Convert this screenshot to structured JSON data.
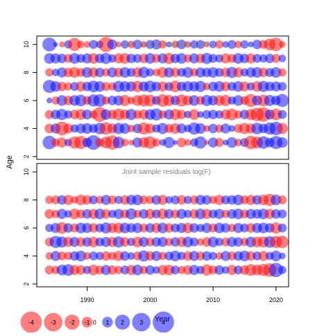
{
  "chart_data": {
    "type": "scatter",
    "subtype": "bubble-residuals",
    "colors": {
      "positive": "#0000FF",
      "negative": "#FF0000",
      "frame": "#000000",
      "panel_title": "#808080"
    },
    "shared_x": {
      "label": "Year",
      "range": [
        1982,
        2022
      ],
      "ticks": [
        1990,
        2000,
        2010,
        2020
      ],
      "years_shown": [
        1984,
        2021
      ]
    },
    "shared_y_label": "Age",
    "panels": [
      {
        "title": "Joint sample residuals log(N)",
        "ylim": [
          1.8,
          10.6
        ],
        "yticks": [
          2,
          4,
          6,
          8,
          10
        ],
        "ages": [
          3,
          4,
          5,
          6,
          7,
          8,
          9,
          10
        ],
        "first_year": 1984,
        "residuals": [
          [
            1.6,
            -0.6,
            -0.9,
            0.5,
            -1.3,
            -1.5,
            0.8,
            1.9,
            -0.7,
            -1.2,
            -1.8,
            1.2,
            -0.5,
            -0.3,
            0.9,
            -1.0,
            -1.4,
            -0.6,
            0.4,
            1.1,
            0.2,
            -0.8,
            -0.4,
            0.6,
            1.3,
            -0.2,
            0.9,
            -0.7,
            0.3,
            1.0,
            -0.5,
            0.7,
            -1.6,
            -1.2,
            1.4,
            0.8,
            1.5,
            1.0
          ],
          [
            -0.8,
            0.9,
            -1.7,
            -0.9,
            0.6,
            0.9,
            1.0,
            0.7,
            1.2,
            -1.4,
            -0.9,
            1.1,
            1.0,
            -0.5,
            0.8,
            -1.3,
            -0.9,
            0.6,
            1.1,
            -0.7,
            -1.0,
            0.9,
            0.5,
            1.3,
            1.0,
            -0.4,
            0.8,
            -0.6,
            0.9,
            0.4,
            -0.7,
            -1.1,
            -0.9,
            1.2,
            0.8,
            1.3,
            1.6,
            -1.1
          ],
          [
            -0.7,
            0.8,
            1.1,
            0.6,
            -0.8,
            -1.0,
            0.9,
            -0.6,
            -1.9,
            1.0,
            -0.8,
            -1.2,
            -0.9,
            1.1,
            -0.7,
            -0.9,
            1.0,
            1.3,
            -0.6,
            0.9,
            -1.1,
            -0.8,
            0.5,
            -1.0,
            0.4,
            0.7,
            0.8,
            0.6,
            -0.9,
            -1.2,
            -0.6,
            0.8,
            -1.1,
            -1.6,
            -1.8,
            0.9,
            -1.2,
            0.7
          ],
          [
            0.3,
            -0.6,
            1.0,
            -0.8,
            1.0,
            1.2,
            -0.7,
            1.3,
            1.4,
            -0.6,
            0.8,
            0.9,
            -1.1,
            -0.5,
            -1.0,
            -1.3,
            -1.2,
            0.7,
            -1.4,
            -1.1,
            0.8,
            -1.3,
            -0.9,
            1.0,
            -0.7,
            1.1,
            0.9,
            -1.0,
            -1.1,
            0.6,
            1.0,
            -0.7,
            -1.5,
            0.9,
            -1.2,
            1.1,
            0.8,
            1.5
          ],
          [
            1.5,
            1.0,
            -0.8,
            -0.6,
            0.7,
            -0.9,
            0.8,
            1.2,
            1.0,
            -0.7,
            -0.6,
            1.1,
            1.0,
            0.9,
            -1.1,
            0.9,
            1.2,
            0.8,
            -0.9,
            0.7,
            -1.2,
            0.8,
            1.0,
            0.9,
            1.1,
            -0.5,
            0.8,
            1.0,
            -0.8,
            0.7,
            1.0,
            -0.9,
            0.6,
            -1.0,
            1.1,
            0.8,
            0.9,
            0.7
          ],
          [
            -0.6,
            0.5,
            0.9,
            -0.8,
            -1.0,
            -0.7,
            1.0,
            -0.9,
            0.8,
            -0.6,
            0.9,
            -0.8,
            1.0,
            0.7,
            -0.9,
            1.1,
            0.6,
            -0.5,
            -1.0,
            0.9,
            -0.8,
            0.7,
            1.0,
            -0.6,
            0.9,
            0.8,
            1.0,
            0.7,
            -0.8,
            1.1,
            -0.9,
            0.6,
            0.9,
            1.0,
            -0.8,
            0.7,
            1.0,
            -0.6
          ],
          [
            1.0,
            0.9,
            0.8,
            -0.7,
            1.0,
            0.7,
            0.9,
            -1.0,
            0.8,
            1.1,
            0.6,
            -0.9,
            -1.0,
            0.8,
            0.7,
            -0.8,
            1.0,
            -0.7,
            0.9,
            -1.1,
            0.8,
            1.0,
            -0.6,
            0.9,
            -0.8,
            1.1,
            0.7,
            0.6,
            -0.9,
            -0.7,
            1.0,
            0.8,
            -0.9,
            0.7,
            0.6,
            0.8,
            -0.7,
            0.5
          ],
          [
            1.7,
            0.2,
            -0.3,
            0.6,
            -1.5,
            -0.5,
            -0.4,
            0.7,
            0.5,
            -2.0,
            0.9,
            -0.3,
            0.6,
            -0.5,
            0.8,
            -0.4,
            0.7,
            0.9,
            -0.6,
            0.3,
            -0.5,
            0.8,
            -0.4,
            0.6,
            0.7,
            -0.3,
            0.5,
            -0.6,
            0.4,
            0.7,
            -0.5,
            0.6,
            0.3,
            0.8,
            -0.7,
            -1.2,
            -1.6,
            -0.4
          ]
        ]
      },
      {
        "title": "Joint sample residuals log(F)",
        "ylim": [
          1.8,
          10.6
        ],
        "yticks": [
          2,
          4,
          6,
          8,
          10
        ],
        "ages": [
          3,
          4,
          5,
          6,
          7,
          8
        ],
        "first_year": 1984,
        "residuals": [
          [
            -0.7,
            -0.6,
            1.0,
            1.2,
            -0.9,
            -0.8,
            0.6,
            -1.0,
            -0.7,
            0.9,
            -0.8,
            -0.6,
            0.7,
            -0.9,
            1.0,
            -0.6,
            0.8,
            0.5,
            -0.9,
            -1.0,
            0.7,
            -0.6,
            -0.8,
            0.9,
            0.6,
            -1.1,
            -0.7,
            0.8,
            0.5,
            -0.9,
            0.7,
            -0.8,
            -1.2,
            -1.0,
            -1.3,
            -1.6,
            1.8,
            0.6
          ],
          [
            -0.5,
            0.9,
            -0.7,
            -0.6,
            0.8,
            1.0,
            -0.5,
            0.7,
            0.6,
            -0.8,
            -0.6,
            -0.9,
            0.8,
            0.5,
            -0.7,
            1.1,
            -0.8,
            0.9,
            -0.6,
            0.7,
            1.0,
            0.6,
            -0.8,
            0.9,
            -0.7,
            0.8,
            0.6,
            -0.5,
            0.9,
            -0.7,
            0.8,
            1.0,
            -0.8,
            0.7,
            -0.9,
            0.6,
            1.0,
            0.4
          ],
          [
            -0.7,
            1.3,
            1.1,
            -0.9,
            0.9,
            -0.8,
            0.8,
            -1.0,
            0.7,
            0.9,
            -0.9,
            1.1,
            -0.8,
            0.6,
            -1.0,
            0.9,
            -0.7,
            0.8,
            0.9,
            -0.6,
            0.8,
            -0.9,
            1.0,
            0.7,
            -0.5,
            -0.8,
            1.0,
            0.6,
            -0.7,
            0.9,
            0.8,
            -0.6,
            1.0,
            -1.0,
            -1.1,
            1.2,
            -1.3,
            -1.4
          ],
          [
            0.6,
            0.9,
            -1.2,
            0.8,
            -0.7,
            1.0,
            0.9,
            -0.8,
            0.7,
            1.1,
            -0.9,
            -1.0,
            1.0,
            0.8,
            0.9,
            -0.7,
            0.8,
            -0.9,
            1.0,
            -0.8,
            0.7,
            0.9,
            -1.0,
            0.8,
            0.6,
            0.9,
            -0.7,
            1.0,
            0.8,
            -0.6,
            0.9,
            0.7,
            -0.8,
            0.9,
            1.0,
            0.8,
            -1.1,
            0.7
          ],
          [
            -0.8,
            -0.6,
            0.9,
            0.5,
            -1.0,
            -0.7,
            0.8,
            -0.9,
            1.0,
            -0.8,
            0.6,
            0.9,
            -0.7,
            1.1,
            -0.6,
            0.8,
            -0.9,
            0.7,
            -1.0,
            0.8,
            -0.7,
            0.9,
            0.6,
            -0.8,
            1.0,
            -0.9,
            0.7,
            0.9,
            -0.6,
            0.8,
            1.0,
            -0.7,
            0.9,
            0.8,
            1.0,
            -0.9,
            0.8,
            0.7
          ],
          [
            -0.6,
            -0.7,
            0.8,
            -0.9,
            -0.5,
            -1.0,
            -0.8,
            0.7,
            -0.6,
            0.9,
            -0.7,
            0.6,
            -0.8,
            0.9,
            1.0,
            -0.7,
            -0.6,
            0.8,
            -0.9,
            0.5,
            0.7,
            -0.8,
            0.6,
            -0.7,
            0.9,
            0.8,
            -0.6,
            -0.9,
            0.7,
            0.8,
            1.0,
            -0.7,
            -0.9,
            0.8,
            -1.0,
            -1.3,
            1.0,
            -0.7
          ]
        ]
      }
    ],
    "legend": {
      "values": [
        -4,
        -3,
        -2,
        -1,
        0,
        1,
        2,
        3,
        4
      ],
      "labels": [
        "-4",
        "-3",
        "-2",
        "-1",
        "0",
        "1",
        "2",
        "3",
        "4"
      ],
      "placement": "bottom-left"
    }
  }
}
